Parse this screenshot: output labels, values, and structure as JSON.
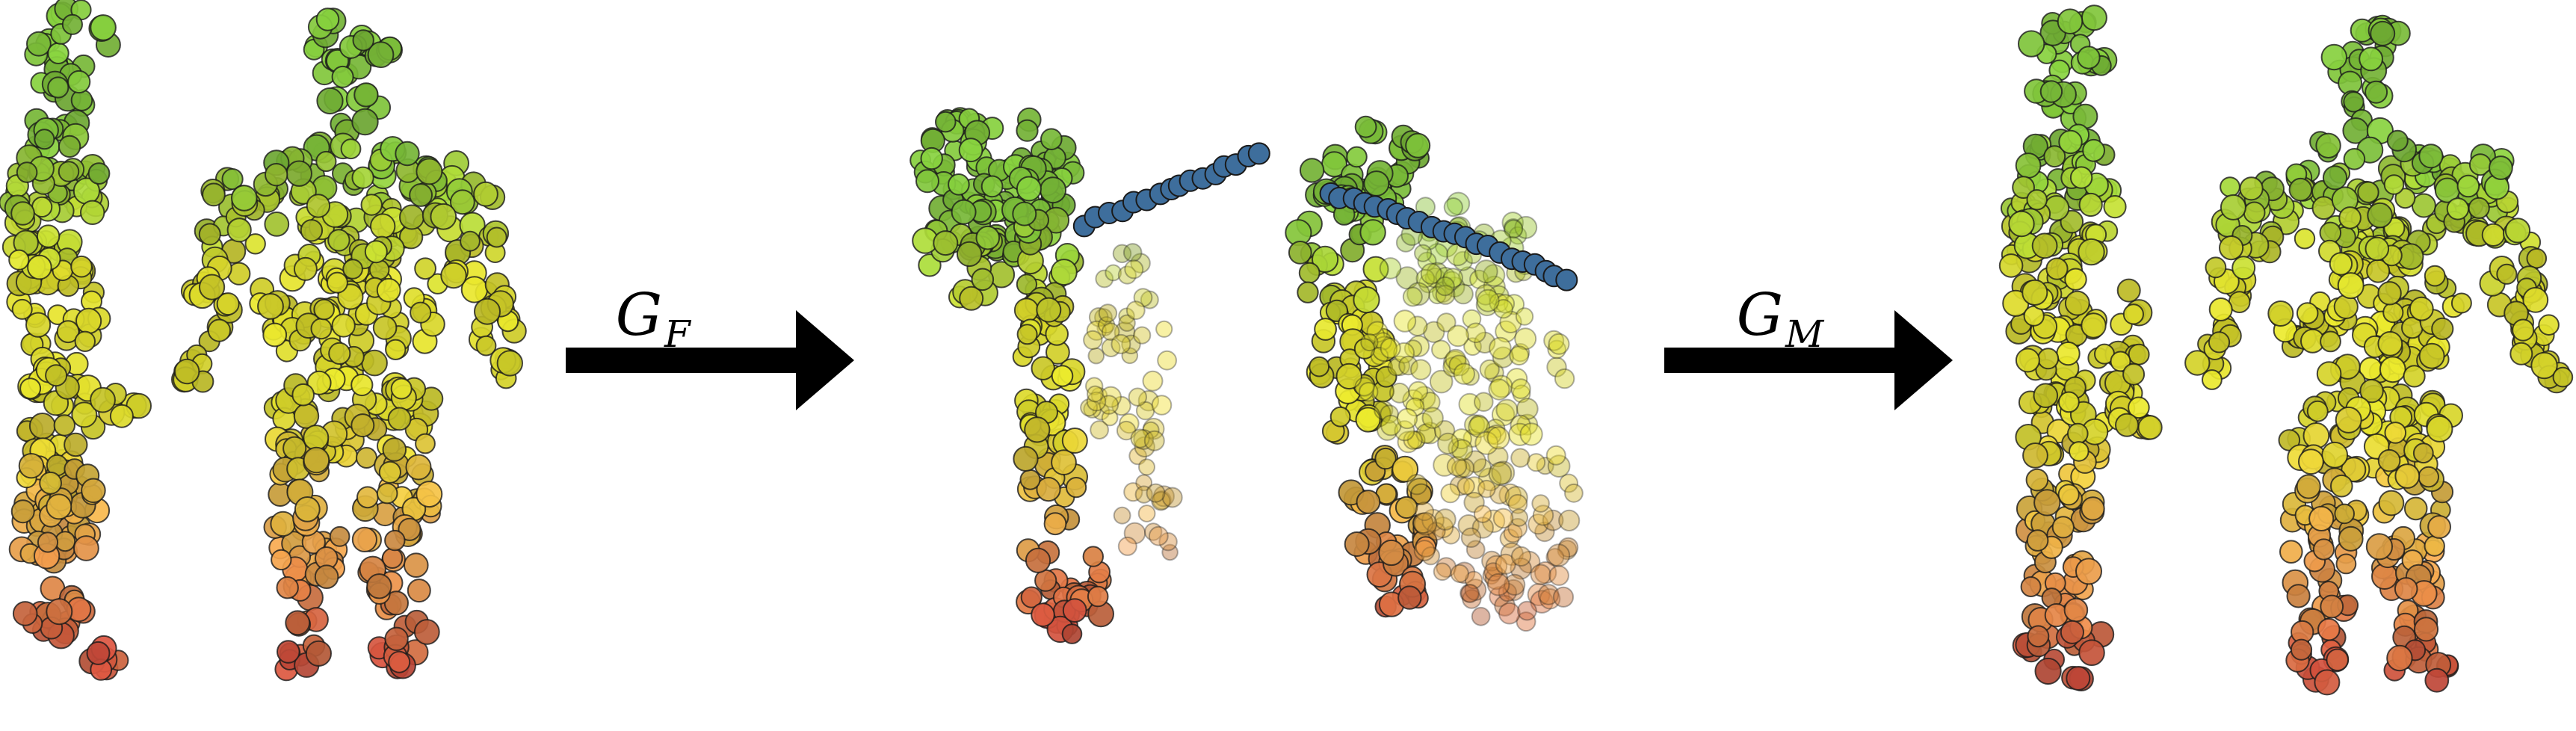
{
  "figure": {
    "panels": [
      {
        "id": "input-shape",
        "views": [
          "side-view",
          "front-view"
        ]
      },
      {
        "id": "latent-embedding",
        "views": [
          "view-a",
          "view-b"
        ]
      },
      {
        "id": "reconstructed-shape",
        "views": [
          "side-view",
          "front-view"
        ]
      }
    ],
    "arrows": [
      {
        "id": "encoder",
        "symbol": "G",
        "subscript": "F"
      },
      {
        "id": "decoder",
        "symbol": "G",
        "subscript": "M"
      }
    ],
    "colors": {
      "arrow": "#000000",
      "green": "#7ec23a",
      "yellow": "#d8d62a",
      "orange": "#e6a24a",
      "red": "#c84a3a",
      "blue": "#3e6e9c",
      "gray": "#8a8a80",
      "outline": "#1a1a1a"
    }
  }
}
